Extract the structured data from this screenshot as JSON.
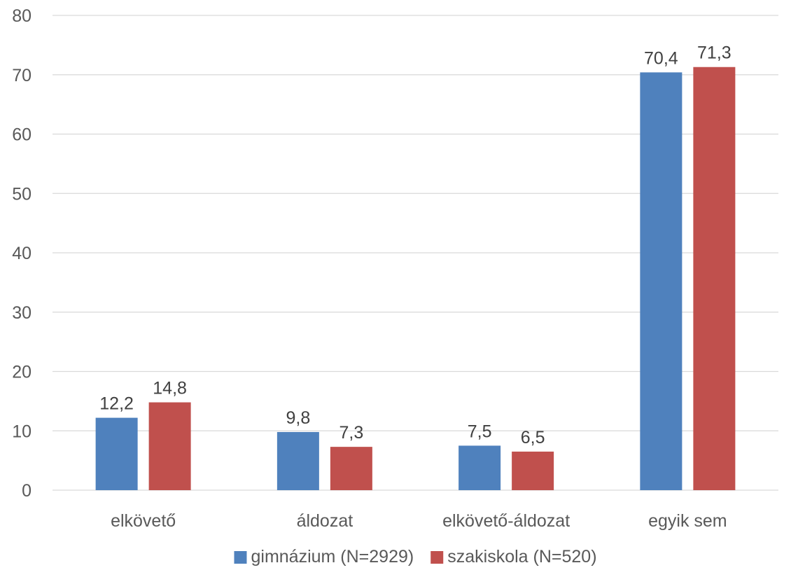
{
  "chart_data": {
    "type": "bar",
    "title": "",
    "xlabel": "",
    "ylabel": "",
    "ylim": [
      0,
      80
    ],
    "yticks": [
      0,
      10,
      20,
      30,
      40,
      50,
      60,
      70,
      80
    ],
    "grid": true,
    "legend_position": "bottom",
    "decimal_separator": ",",
    "categories": [
      "elkövető",
      "áldozat",
      "elkövető-áldozat",
      "egyik sem"
    ],
    "series": [
      {
        "name": "gimnázium (N=2929)",
        "color": "#4f81bd",
        "values": [
          12.2,
          9.8,
          7.5,
          70.4
        ]
      },
      {
        "name": "szakiskola (N=520)",
        "color": "#c0504d",
        "values": [
          14.8,
          7.3,
          6.5,
          71.3
        ]
      }
    ]
  }
}
